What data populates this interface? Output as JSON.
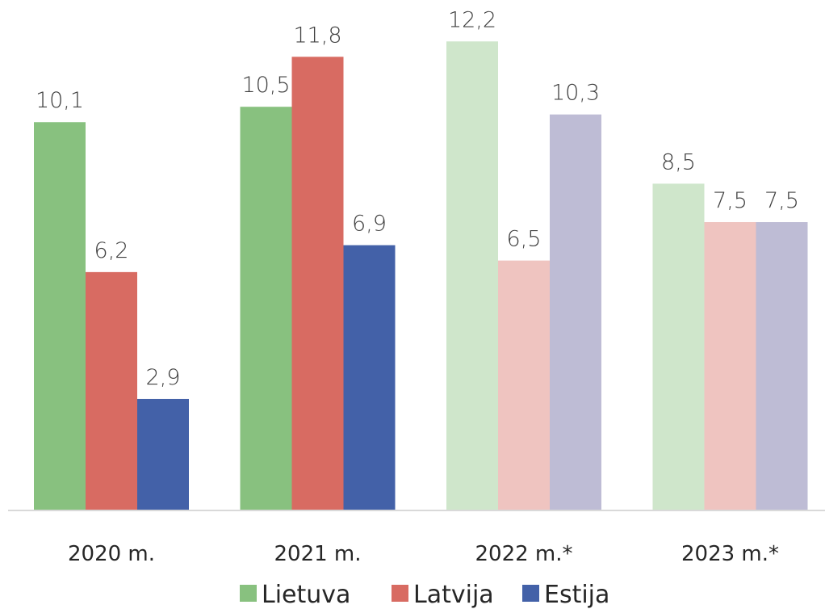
{
  "chart_data": {
    "type": "bar",
    "categories": [
      "2020 m.",
      "2021 m.",
      "2022 m.*",
      "2023 m.*"
    ],
    "series": [
      {
        "name": "Lietuva",
        "values": [
          10.1,
          10.5,
          12.2,
          8.5
        ],
        "labels": [
          "10,1",
          "10,5",
          "12,2",
          "8,5"
        ],
        "color": "#88c17f",
        "faded_color": "#cfe6cb"
      },
      {
        "name": "Latvija",
        "values": [
          6.2,
          11.8,
          6.5,
          7.5
        ],
        "labels": [
          "6,2",
          "11,8",
          "6,5",
          "7,5"
        ],
        "color": "#d86b62",
        "faded_color": "#efc4c0"
      },
      {
        "name": "Estija",
        "values": [
          2.9,
          6.9,
          10.3,
          7.5
        ],
        "labels": [
          "2,9",
          "6,9",
          "10,3",
          "7,5"
        ],
        "color": "#4361a8",
        "faded_color": "#bebcd5"
      }
    ],
    "forecast_categories": [
      "2022 m.*",
      "2023 m.*"
    ],
    "ylim": [
      0,
      13
    ],
    "grid": false,
    "legend_position": "bottom",
    "title": "",
    "xlabel": "",
    "ylabel": ""
  }
}
